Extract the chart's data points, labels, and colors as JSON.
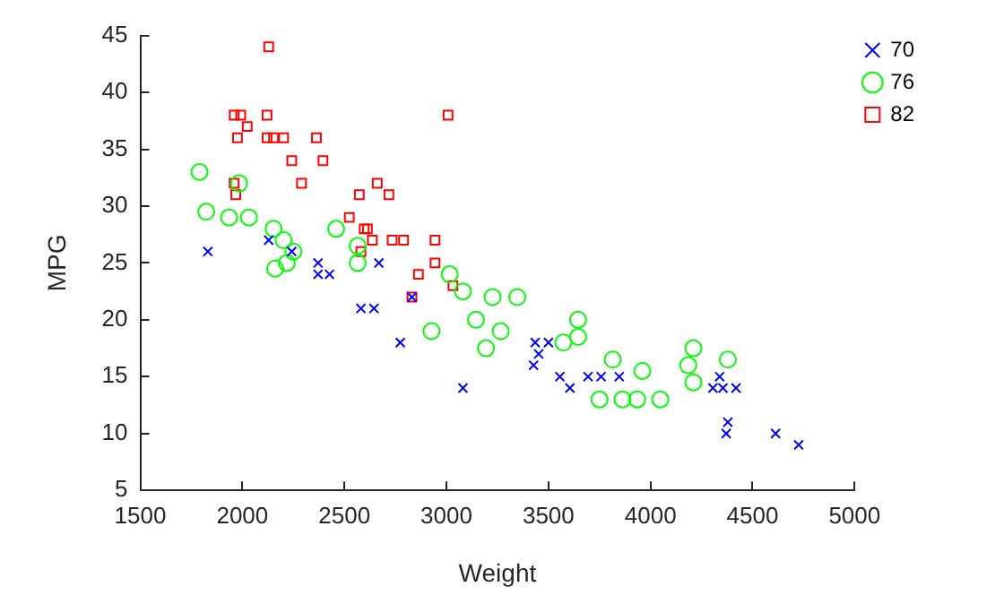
{
  "chart_data": {
    "type": "scatter",
    "xlabel": "Weight",
    "ylabel": "MPG",
    "xlim": [
      1500,
      5000
    ],
    "xticks": [
      1500,
      2000,
      2500,
      3000,
      3500,
      4000,
      4500,
      5000
    ],
    "ylim": [
      5,
      45
    ],
    "yticks": [
      5,
      10,
      15,
      20,
      25,
      30,
      35,
      40,
      45
    ],
    "grid": false,
    "legend": "top right",
    "series": [
      {
        "name": "70",
        "color": "#0000ff",
        "marker": "cross",
        "x": [
          1831,
          2129,
          2242,
          2371,
          2371,
          2427,
          2669,
          2581,
          2645,
          2774,
          2831,
          3081,
          3435,
          3452,
          3427,
          3500,
          3556,
          3605,
          3694,
          3758,
          3847,
          4306,
          4339,
          4355,
          4419,
          4379,
          4371,
          4613,
          4726
        ],
        "values": [
          26,
          27,
          26,
          25,
          24,
          24,
          25,
          21,
          21,
          18,
          22,
          14,
          18,
          17,
          16,
          18,
          15,
          14,
          15,
          15,
          15,
          14,
          15,
          14,
          14,
          11,
          10,
          10,
          9
        ]
      },
      {
        "name": "76",
        "color": "#00ff00",
        "marker": "circle",
        "x": [
          1790,
          1984,
          1823,
          1935,
          2032,
          2153,
          2202,
          2250,
          2460,
          2565,
          2565,
          2218,
          2161,
          2927,
          3016,
          3081,
          3226,
          3145,
          3194,
          3347,
          3266,
          3573,
          3645,
          3645,
          3815,
          3960,
          3750,
          3863,
          3935,
          4048,
          4210,
          4185,
          4210,
          4379
        ],
        "values": [
          33,
          32,
          29.5,
          29,
          29,
          28,
          27,
          26,
          28,
          26.5,
          25,
          25,
          24.5,
          19,
          24,
          22.5,
          22,
          20,
          17.5,
          22,
          19,
          18,
          20,
          18.5,
          16.5,
          15.5,
          13,
          13,
          13,
          13,
          17.5,
          16,
          14.5,
          16.5
        ]
      },
      {
        "name": "82",
        "color": "#ff0000",
        "marker": "square",
        "x": [
          2129,
          1960,
          1992,
          2121,
          2024,
          1976,
          2121,
          2153,
          2202,
          2363,
          2242,
          2395,
          2290,
          1960,
          1968,
          2661,
          2573,
          2524,
          3008,
          2718,
          2613,
          2597,
          2637,
          2734,
          2790,
          2944,
          2581,
          2944,
          2863,
          3032,
          2831
        ],
        "values": [
          44,
          38,
          38,
          38,
          37,
          36,
          36,
          36,
          36,
          36,
          34,
          34,
          32,
          32,
          31,
          32,
          31,
          29,
          38,
          31,
          28,
          28,
          27,
          27,
          27,
          27,
          26,
          25,
          24,
          23,
          22
        ]
      }
    ]
  }
}
